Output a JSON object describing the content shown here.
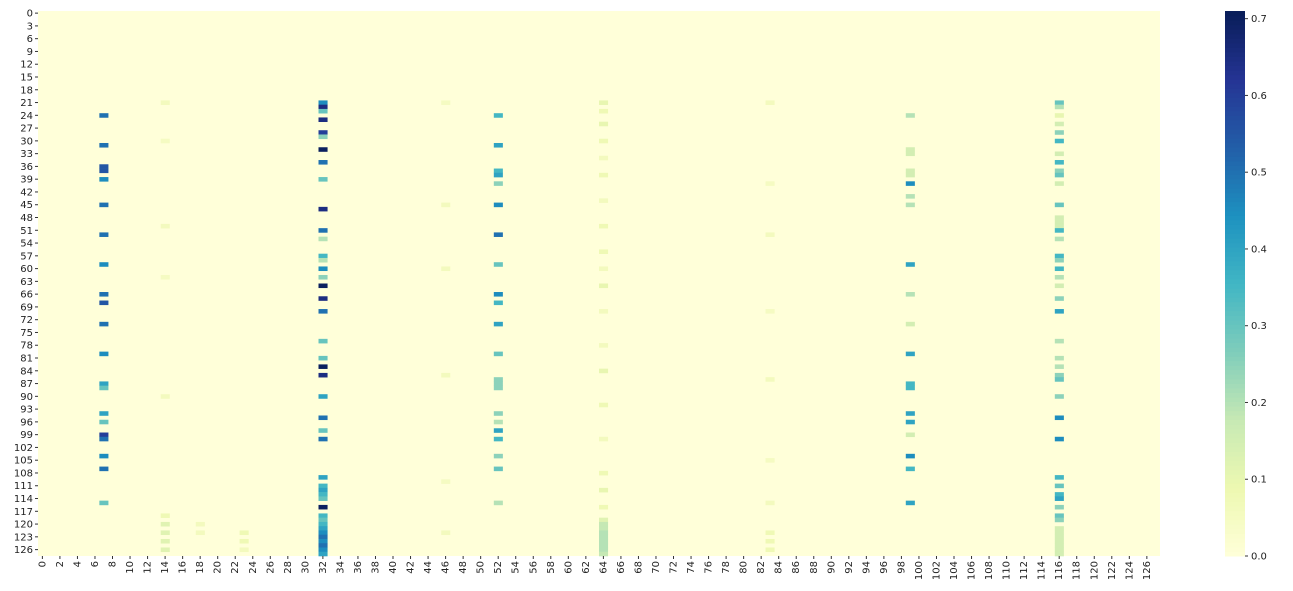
{
  "chart_data": {
    "type": "heatmap",
    "rows": 128,
    "cols": 128,
    "colormap": "YlGnBu",
    "clim": [
      0,
      0.71
    ],
    "xticks": [
      0,
      2,
      4,
      6,
      8,
      10,
      12,
      14,
      16,
      18,
      20,
      22,
      24,
      26,
      28,
      30,
      32,
      34,
      36,
      38,
      40,
      42,
      44,
      46,
      48,
      50,
      52,
      54,
      56,
      58,
      60,
      62,
      64,
      66,
      68,
      70,
      72,
      74,
      76,
      78,
      80,
      82,
      84,
      86,
      88,
      90,
      92,
      94,
      96,
      98,
      100,
      102,
      104,
      106,
      108,
      110,
      112,
      114,
      116,
      118,
      120,
      122,
      124,
      126
    ],
    "yticks": [
      0,
      3,
      6,
      9,
      12,
      15,
      18,
      21,
      24,
      27,
      30,
      33,
      36,
      39,
      42,
      45,
      48,
      51,
      54,
      57,
      60,
      63,
      66,
      69,
      72,
      75,
      78,
      81,
      84,
      87,
      90,
      93,
      96,
      99,
      102,
      105,
      108,
      111,
      114,
      117,
      120,
      123,
      126
    ],
    "cticks": [
      {
        "value": 0,
        "label": "0.0"
      },
      {
        "value": 0.1,
        "label": "0.1"
      },
      {
        "value": 0.2,
        "label": "0.2"
      },
      {
        "value": 0.3,
        "label": "0.3"
      },
      {
        "value": 0.4,
        "label": "0.4"
      },
      {
        "value": 0.5,
        "label": "0.5"
      },
      {
        "value": 0.6,
        "label": "0.6"
      },
      {
        "value": 0.7,
        "label": "0.7"
      }
    ],
    "cells": [
      [
        21,
        32,
        0.45
      ],
      [
        22,
        32,
        0.65
      ],
      [
        23,
        32,
        0.3
      ],
      [
        25,
        32,
        0.65
      ],
      [
        28,
        32,
        0.6
      ],
      [
        29,
        32,
        0.25
      ],
      [
        32,
        32,
        0.7
      ],
      [
        35,
        32,
        0.5
      ],
      [
        39,
        32,
        0.3
      ],
      [
        46,
        32,
        0.65
      ],
      [
        51,
        32,
        0.5
      ],
      [
        53,
        32,
        0.2
      ],
      [
        57,
        32,
        0.35
      ],
      [
        58,
        32,
        0.2
      ],
      [
        60,
        32,
        0.45
      ],
      [
        62,
        32,
        0.25
      ],
      [
        64,
        32,
        0.7
      ],
      [
        67,
        32,
        0.65
      ],
      [
        70,
        32,
        0.5
      ],
      [
        77,
        32,
        0.3
      ],
      [
        81,
        32,
        0.3
      ],
      [
        83,
        32,
        0.7
      ],
      [
        85,
        32,
        0.65
      ],
      [
        90,
        32,
        0.4
      ],
      [
        95,
        32,
        0.5
      ],
      [
        98,
        32,
        0.3
      ],
      [
        100,
        32,
        0.5
      ],
      [
        109,
        32,
        0.4
      ],
      [
        111,
        32,
        0.35
      ],
      [
        112,
        32,
        0.4
      ],
      [
        113,
        32,
        0.35
      ],
      [
        114,
        32,
        0.3
      ],
      [
        116,
        32,
        0.7
      ],
      [
        118,
        32,
        0.35
      ],
      [
        119,
        32,
        0.3
      ],
      [
        120,
        32,
        0.35
      ],
      [
        121,
        32,
        0.4
      ],
      [
        122,
        32,
        0.45
      ],
      [
        123,
        32,
        0.5
      ],
      [
        124,
        32,
        0.45
      ],
      [
        125,
        32,
        0.5
      ],
      [
        126,
        32,
        0.45
      ],
      [
        127,
        32,
        0.4
      ],
      [
        24,
        7,
        0.5
      ],
      [
        31,
        7,
        0.5
      ],
      [
        36,
        7,
        0.55
      ],
      [
        37,
        7,
        0.55
      ],
      [
        39,
        7,
        0.45
      ],
      [
        45,
        7,
        0.5
      ],
      [
        52,
        7,
        0.5
      ],
      [
        59,
        7,
        0.45
      ],
      [
        66,
        7,
        0.5
      ],
      [
        68,
        7,
        0.55
      ],
      [
        73,
        7,
        0.5
      ],
      [
        80,
        7,
        0.45
      ],
      [
        87,
        7,
        0.4
      ],
      [
        88,
        7,
        0.3
      ],
      [
        94,
        7,
        0.4
      ],
      [
        96,
        7,
        0.3
      ],
      [
        99,
        7,
        0.6
      ],
      [
        100,
        7,
        0.5
      ],
      [
        104,
        7,
        0.45
      ],
      [
        107,
        7,
        0.5
      ],
      [
        115,
        7,
        0.3
      ],
      [
        24,
        52,
        0.35
      ],
      [
        31,
        52,
        0.4
      ],
      [
        37,
        52,
        0.35
      ],
      [
        38,
        52,
        0.4
      ],
      [
        40,
        52,
        0.25
      ],
      [
        45,
        52,
        0.45
      ],
      [
        52,
        52,
        0.5
      ],
      [
        59,
        52,
        0.3
      ],
      [
        66,
        52,
        0.45
      ],
      [
        68,
        52,
        0.35
      ],
      [
        73,
        52,
        0.4
      ],
      [
        80,
        52,
        0.3
      ],
      [
        86,
        52,
        0.25
      ],
      [
        87,
        52,
        0.25
      ],
      [
        88,
        52,
        0.25
      ],
      [
        94,
        52,
        0.25
      ],
      [
        96,
        52,
        0.2
      ],
      [
        98,
        52,
        0.4
      ],
      [
        100,
        52,
        0.35
      ],
      [
        104,
        52,
        0.25
      ],
      [
        107,
        52,
        0.3
      ],
      [
        115,
        52,
        0.2
      ],
      [
        24,
        99,
        0.2
      ],
      [
        32,
        99,
        0.15
      ],
      [
        33,
        99,
        0.15
      ],
      [
        37,
        99,
        0.15
      ],
      [
        38,
        99,
        0.15
      ],
      [
        40,
        99,
        0.45
      ],
      [
        43,
        99,
        0.2
      ],
      [
        45,
        99,
        0.2
      ],
      [
        59,
        99,
        0.4
      ],
      [
        66,
        99,
        0.2
      ],
      [
        73,
        99,
        0.15
      ],
      [
        80,
        99,
        0.4
      ],
      [
        87,
        99,
        0.35
      ],
      [
        88,
        99,
        0.35
      ],
      [
        94,
        99,
        0.4
      ],
      [
        96,
        99,
        0.4
      ],
      [
        99,
        99,
        0.15
      ],
      [
        104,
        99,
        0.45
      ],
      [
        107,
        99,
        0.35
      ],
      [
        115,
        99,
        0.4
      ],
      [
        21,
        116,
        0.3
      ],
      [
        22,
        116,
        0.2
      ],
      [
        24,
        116,
        0.1
      ],
      [
        26,
        116,
        0.15
      ],
      [
        28,
        116,
        0.25
      ],
      [
        30,
        116,
        0.35
      ],
      [
        33,
        116,
        0.15
      ],
      [
        35,
        116,
        0.35
      ],
      [
        37,
        116,
        0.25
      ],
      [
        38,
        116,
        0.3
      ],
      [
        40,
        116,
        0.15
      ],
      [
        45,
        116,
        0.3
      ],
      [
        48,
        116,
        0.15
      ],
      [
        49,
        116,
        0.15
      ],
      [
        50,
        116,
        0.15
      ],
      [
        51,
        116,
        0.35
      ],
      [
        53,
        116,
        0.2
      ],
      [
        57,
        116,
        0.35
      ],
      [
        58,
        116,
        0.25
      ],
      [
        60,
        116,
        0.35
      ],
      [
        62,
        116,
        0.2
      ],
      [
        64,
        116,
        0.15
      ],
      [
        67,
        116,
        0.25
      ],
      [
        70,
        116,
        0.4
      ],
      [
        77,
        116,
        0.2
      ],
      [
        81,
        116,
        0.2
      ],
      [
        83,
        116,
        0.2
      ],
      [
        85,
        116,
        0.25
      ],
      [
        86,
        116,
        0.3
      ],
      [
        90,
        116,
        0.25
      ],
      [
        95,
        116,
        0.45
      ],
      [
        100,
        116,
        0.45
      ],
      [
        109,
        116,
        0.35
      ],
      [
        111,
        116,
        0.3
      ],
      [
        113,
        116,
        0.35
      ],
      [
        114,
        116,
        0.4
      ],
      [
        116,
        116,
        0.25
      ],
      [
        118,
        116,
        0.3
      ],
      [
        119,
        116,
        0.25
      ],
      [
        121,
        116,
        0.15
      ],
      [
        122,
        116,
        0.15
      ],
      [
        123,
        116,
        0.15
      ],
      [
        124,
        116,
        0.15
      ],
      [
        125,
        116,
        0.15
      ],
      [
        126,
        116,
        0.15
      ],
      [
        127,
        116,
        0.15
      ],
      [
        21,
        64,
        0.1
      ],
      [
        23,
        64,
        0.08
      ],
      [
        26,
        64,
        0.1
      ],
      [
        30,
        64,
        0.08
      ],
      [
        34,
        64,
        0.06
      ],
      [
        38,
        64,
        0.08
      ],
      [
        44,
        64,
        0.06
      ],
      [
        50,
        64,
        0.08
      ],
      [
        56,
        64,
        0.08
      ],
      [
        60,
        64,
        0.06
      ],
      [
        64,
        64,
        0.1
      ],
      [
        70,
        64,
        0.06
      ],
      [
        78,
        64,
        0.06
      ],
      [
        84,
        64,
        0.1
      ],
      [
        92,
        64,
        0.08
      ],
      [
        100,
        64,
        0.06
      ],
      [
        108,
        64,
        0.08
      ],
      [
        112,
        64,
        0.1
      ],
      [
        116,
        64,
        0.08
      ],
      [
        119,
        64,
        0.12
      ],
      [
        120,
        64,
        0.18
      ],
      [
        121,
        64,
        0.18
      ],
      [
        122,
        64,
        0.2
      ],
      [
        123,
        64,
        0.2
      ],
      [
        124,
        64,
        0.2
      ],
      [
        125,
        64,
        0.2
      ],
      [
        126,
        64,
        0.2
      ],
      [
        127,
        64,
        0.18
      ],
      [
        21,
        14,
        0.06
      ],
      [
        30,
        14,
        0.05
      ],
      [
        50,
        14,
        0.06
      ],
      [
        62,
        14,
        0.05
      ],
      [
        90,
        14,
        0.06
      ],
      [
        118,
        14,
        0.08
      ],
      [
        120,
        14,
        0.12
      ],
      [
        122,
        14,
        0.12
      ],
      [
        124,
        14,
        0.12
      ],
      [
        126,
        14,
        0.12
      ],
      [
        21,
        83,
        0.06
      ],
      [
        40,
        83,
        0.05
      ],
      [
        52,
        83,
        0.06
      ],
      [
        70,
        83,
        0.05
      ],
      [
        86,
        83,
        0.06
      ],
      [
        105,
        83,
        0.05
      ],
      [
        115,
        83,
        0.06
      ],
      [
        122,
        83,
        0.08
      ],
      [
        124,
        83,
        0.08
      ],
      [
        126,
        83,
        0.08
      ],
      [
        21,
        46,
        0.05
      ],
      [
        45,
        46,
        0.06
      ],
      [
        60,
        46,
        0.06
      ],
      [
        85,
        46,
        0.06
      ],
      [
        110,
        46,
        0.05
      ],
      [
        122,
        46,
        0.06
      ],
      [
        122,
        23,
        0.08
      ],
      [
        124,
        23,
        0.08
      ],
      [
        126,
        23,
        0.06
      ],
      [
        120,
        18,
        0.06
      ],
      [
        122,
        18,
        0.06
      ]
    ]
  }
}
